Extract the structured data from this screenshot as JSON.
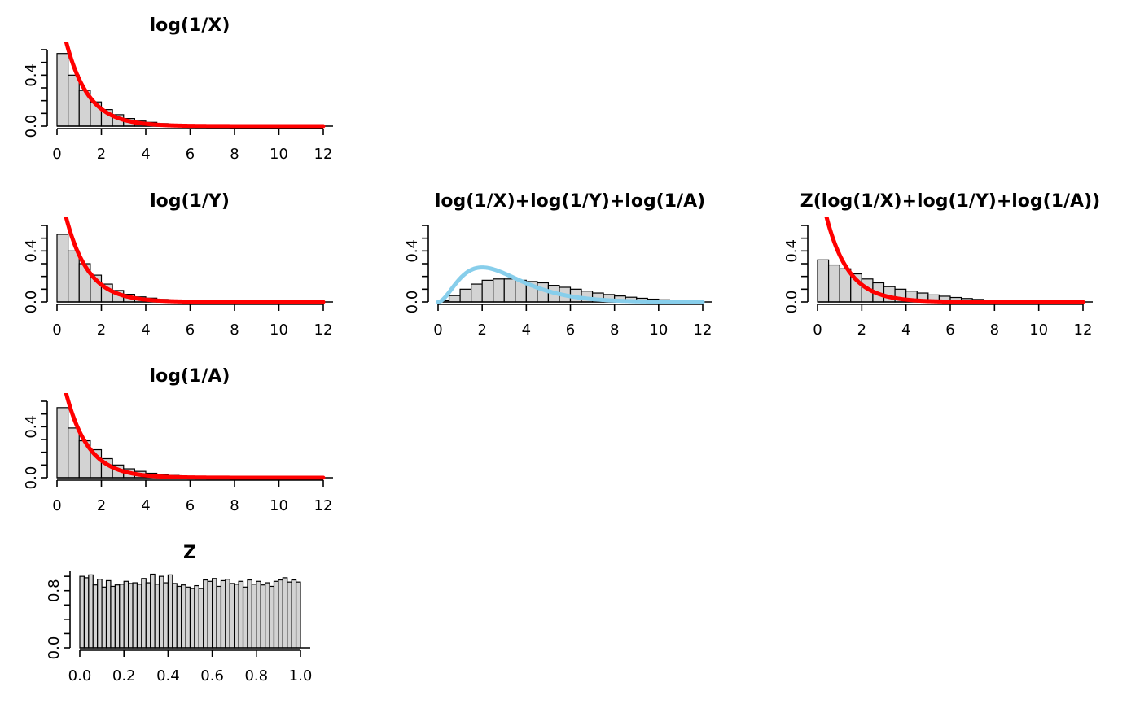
{
  "chart_data": [
    {
      "id": "p1",
      "type": "bar",
      "title": "log(1/X)",
      "bin_width": 0.5,
      "xlim": [
        0,
        12
      ],
      "ylim": [
        0,
        0.6
      ],
      "xticks": [
        "0",
        "2",
        "4",
        "6",
        "8",
        "10",
        "12"
      ],
      "yticks": [
        "0.0",
        "0.4"
      ],
      "values": [
        0.57,
        0.4,
        0.28,
        0.19,
        0.13,
        0.09,
        0.06,
        0.04,
        0.03,
        0.02,
        0.015,
        0.01,
        0.007,
        0.005,
        0.003,
        0.002,
        0.001,
        0.001
      ],
      "curve": {
        "type": "exponential-density",
        "rate": 1,
        "color": "#ff0000"
      },
      "bar_color": "#d3d3d3"
    },
    {
      "id": "p2",
      "type": "bar",
      "title": "log(1/Y)",
      "bin_width": 0.5,
      "xlim": [
        0,
        12
      ],
      "ylim": [
        0,
        0.6
      ],
      "xticks": [
        "0",
        "2",
        "4",
        "6",
        "8",
        "10",
        "12"
      ],
      "yticks": [
        "0.0",
        "0.4"
      ],
      "values": [
        0.53,
        0.4,
        0.3,
        0.21,
        0.14,
        0.09,
        0.06,
        0.04,
        0.03,
        0.02,
        0.012,
        0.008,
        0.005,
        0.003,
        0.002,
        0.001
      ],
      "curve": {
        "type": "exponential-density",
        "rate": 1,
        "color": "#ff0000"
      },
      "bar_color": "#d3d3d3"
    },
    {
      "id": "p3",
      "type": "bar",
      "title": "log(1/X)+log(1/Y)+log(1/A)",
      "bin_width": 0.5,
      "xlim": [
        0,
        12
      ],
      "ylim": [
        0,
        0.6
      ],
      "xticks": [
        "0",
        "2",
        "4",
        "6",
        "8",
        "10",
        "12"
      ],
      "yticks": [
        "0.0",
        "0.4"
      ],
      "values": [
        0.01,
        0.05,
        0.1,
        0.14,
        0.17,
        0.18,
        0.18,
        0.17,
        0.16,
        0.15,
        0.13,
        0.115,
        0.1,
        0.085,
        0.07,
        0.058,
        0.047,
        0.037,
        0.029,
        0.022,
        0.017,
        0.013,
        0.01,
        0.007
      ],
      "curve": {
        "type": "gamma-3-density",
        "rate": 1,
        "color": "#87ceeb"
      },
      "bar_color": "#d3d3d3"
    },
    {
      "id": "p4",
      "type": "bar",
      "title": "Z(log(1/X)+log(1/Y)+log(1/A))",
      "bin_width": 0.5,
      "xlim": [
        0,
        12
      ],
      "ylim": [
        0,
        0.6
      ],
      "xticks": [
        "0",
        "2",
        "4",
        "6",
        "8",
        "10",
        "12"
      ],
      "yticks": [
        "0.0",
        "0.4"
      ],
      "values": [
        0.33,
        0.29,
        0.26,
        0.22,
        0.18,
        0.15,
        0.12,
        0.1,
        0.085,
        0.07,
        0.055,
        0.045,
        0.035,
        0.027,
        0.02,
        0.015,
        0.011,
        0.008,
        0.006,
        0.004,
        0.003,
        0.002,
        0.001
      ],
      "curve": {
        "type": "exponential-density",
        "rate": 1,
        "color": "#ff0000"
      },
      "bar_color": "#d3d3d3"
    },
    {
      "id": "p5",
      "type": "bar",
      "title": "log(1/A)",
      "bin_width": 0.5,
      "xlim": [
        0,
        12
      ],
      "ylim": [
        0,
        0.6
      ],
      "xticks": [
        "0",
        "2",
        "4",
        "6",
        "8",
        "10",
        "12"
      ],
      "yticks": [
        "0.0",
        "0.4"
      ],
      "values": [
        0.55,
        0.39,
        0.29,
        0.22,
        0.15,
        0.1,
        0.07,
        0.05,
        0.035,
        0.025,
        0.018,
        0.012,
        0.008,
        0.005,
        0.003,
        0.002
      ],
      "curve": {
        "type": "exponential-density",
        "rate": 1,
        "color": "#ff0000"
      },
      "bar_color": "#d3d3d3"
    },
    {
      "id": "p6",
      "type": "bar",
      "title": "Z",
      "bin_width": 0.02,
      "xlim": [
        0,
        1
      ],
      "ylim": [
        0,
        1.07
      ],
      "xticks": [
        "0.0",
        "0.2",
        "0.4",
        "0.6",
        "0.8",
        "1.0"
      ],
      "yticks": [
        "0.0",
        "0.8"
      ],
      "values": [
        1.0,
        0.98,
        1.02,
        0.88,
        0.96,
        0.85,
        0.94,
        0.86,
        0.88,
        0.89,
        0.93,
        0.9,
        0.91,
        0.89,
        0.97,
        0.91,
        1.03,
        0.89,
        1.0,
        0.91,
        1.02,
        0.9,
        0.86,
        0.88,
        0.85,
        0.83,
        0.87,
        0.83,
        0.95,
        0.93,
        0.97,
        0.86,
        0.94,
        0.96,
        0.9,
        0.89,
        0.93,
        0.85,
        0.95,
        0.89,
        0.93,
        0.88,
        0.91,
        0.86,
        0.93,
        0.95,
        0.98,
        0.92,
        0.95,
        0.92
      ],
      "bar_color": "#d3d3d3"
    }
  ]
}
